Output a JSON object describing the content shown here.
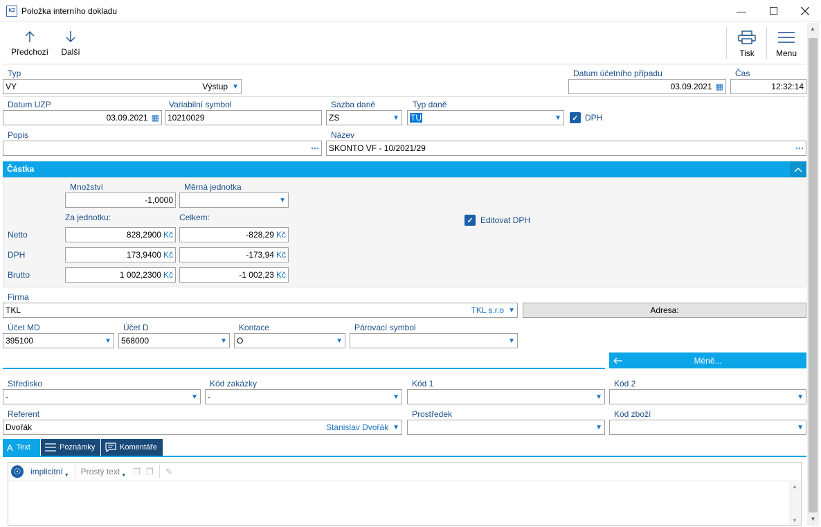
{
  "window": {
    "title": "Položka interního dokladu",
    "icon_text": "KZ"
  },
  "toolbar": {
    "prev_label": "Předchozí",
    "next_label": "Další",
    "print_label": "Tisk",
    "menu_label": "Menu"
  },
  "form": {
    "typ": {
      "label": "Typ",
      "code": "VY",
      "text": "Výstup"
    },
    "datum_ucetniho_pripadu": {
      "label": "Datum účetního případu",
      "value": "03.09.2021"
    },
    "cas": {
      "label": "Čas",
      "value": "12:32:14"
    },
    "datum_uzp": {
      "label": "Datum UZP",
      "value": "03.09.2021"
    },
    "variabilni_symbol": {
      "label": "Variabilní symbol",
      "value": "10210029"
    },
    "sazba_dane": {
      "label": "Sazba daně",
      "value": "ZS"
    },
    "typ_dane": {
      "label": "Typ daně",
      "value": "TU"
    },
    "dph_checkbox": {
      "label": "DPH",
      "checked": true
    },
    "popis": {
      "label": "Popis",
      "value": ""
    },
    "nazev": {
      "label": "Název",
      "value": "SKONTO VF - 10/2021/29"
    }
  },
  "castka": {
    "title": "Částka",
    "mnozstvi_label": "Množství",
    "mnozstvi_value": "-1,0000",
    "merna_jednotka_label": "Měrná jednotka",
    "merna_jednotka_value": "",
    "za_jednotku_label": "Za jednotku:",
    "celkem_label": "Celkem:",
    "editovat_dph_label": "Editovat DPH",
    "currency": "Kč",
    "rows": [
      {
        "label": "Netto",
        "unit": "828,2900",
        "total": "-828,29"
      },
      {
        "label": "DPH",
        "unit": "173,9400",
        "total": "-173,94"
      },
      {
        "label": "Brutto",
        "unit": "1 002,2300",
        "total": "-1 002,23"
      }
    ]
  },
  "firma": {
    "label": "Firma",
    "code": "TKL",
    "name": "TKL s.r.o",
    "adresa_label": "Adresa:"
  },
  "ucty": {
    "ucet_md": {
      "label": "Účet MD",
      "value": "395100"
    },
    "ucet_d": {
      "label": "Účet D",
      "value": "568000"
    },
    "kontace": {
      "label": "Kontace",
      "value": "O"
    },
    "parovaci_symbol": {
      "label": "Párovací symbol",
      "value": ""
    }
  },
  "mene_label": "Méně...",
  "detail": {
    "stredisko": {
      "label": "Středisko",
      "value": "-"
    },
    "kod_zakazky": {
      "label": "Kód zakázky",
      "value": "-"
    },
    "kod1": {
      "label": "Kód 1",
      "value": ""
    },
    "kod2": {
      "label": "Kód 2",
      "value": ""
    },
    "referent": {
      "label": "Referent",
      "code": "Dvořák",
      "name": "Stanislav Dvořák"
    },
    "prostredek": {
      "label": "Prostředek",
      "value": ""
    },
    "kod_zbozi": {
      "label": "Kód zboží",
      "value": ""
    }
  },
  "tabs": [
    {
      "label": "Text",
      "active": true
    },
    {
      "label": "Poznámky",
      "active": false
    },
    {
      "label": "Komentáře",
      "active": false
    }
  ],
  "editor": {
    "language": "implicitní",
    "format": "Prostý text"
  },
  "colors": {
    "accent": "#0ba5e8",
    "dark_tab": "#1a4a7a",
    "label": "#1a4f8a"
  }
}
